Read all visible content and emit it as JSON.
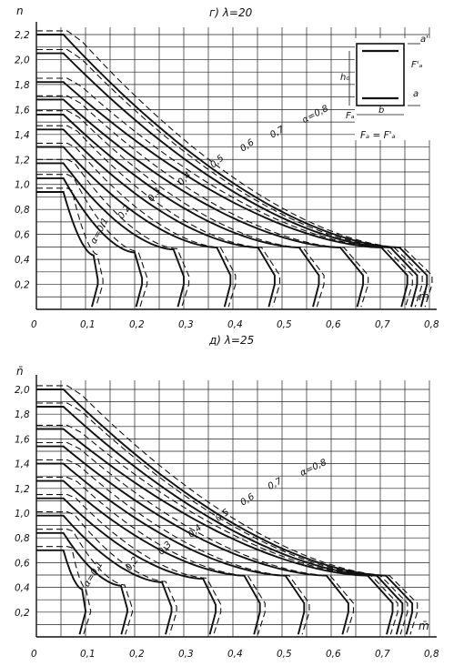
{
  "chart_data": [
    {
      "type": "line",
      "title": "г) λ=20",
      "xlabel": "m̄",
      "ylabel": "n",
      "xlim": [
        0,
        0.8
      ],
      "ylim": [
        0,
        2.2
      ],
      "grid": true,
      "x_tick_labels": [
        "0",
        "0,1",
        "0,2",
        "0,3",
        "0,4",
        "0,5",
        "0,6",
        "0,7",
        "0,8"
      ],
      "y_tick_labels": [
        "0,2",
        "0,4",
        "0,6",
        "0,8",
        "1,0",
        "1,2",
        "1,4",
        "1,6",
        "1,8",
        "2,0",
        "2,2"
      ],
      "line_styles": [
        "solid",
        "dashed"
      ],
      "series": [
        {
          "name": "α=0,1",
          "label": "α=0,1",
          "n0": 0.94,
          "xtip": 0.125
        },
        {
          "name": "0,2",
          "label": "0,2",
          "n0": 1.05,
          "xtip": 0.215
        },
        {
          "name": "0,3",
          "label": "0,3",
          "n0": 1.17,
          "xtip": 0.3
        },
        {
          "name": "0,4",
          "label": "0,4",
          "n0": 1.3,
          "xtip": 0.395
        },
        {
          "name": "0,5",
          "label": "0,5",
          "n0": 1.44,
          "xtip": 0.485
        },
        {
          "name": "0,6",
          "label": "0,6",
          "n0": 1.56,
          "xtip": 0.575
        },
        {
          "name": "0,7",
          "label": "0,7",
          "n0": 1.68,
          "xtip": 0.665
        },
        {
          "name": "α=0,8",
          "label": "α=0,8",
          "n0": 1.82,
          "xtip": 0.755
        }
      ],
      "extra_curves_n0": [
        2.05,
        2.2
      ],
      "inset": {
        "labels": [
          "a'",
          "h₀",
          "F'ₐ",
          "a",
          "Fₐ",
          "b"
        ],
        "formula": "Fₐ = F'ₐ"
      }
    },
    {
      "type": "line",
      "title": "д) λ=25",
      "xlabel": "m̄",
      "ylabel": "n̄",
      "xlim": [
        0,
        0.8
      ],
      "ylim": [
        0,
        2.0
      ],
      "grid": true,
      "x_tick_labels": [
        "0",
        "0,1",
        "0,2",
        "0,3",
        "0,4",
        "0,5",
        "0,6",
        "0,7",
        "0,8"
      ],
      "y_tick_labels": [
        "0,2",
        "0,4",
        "0,6",
        "0,8",
        "1,0",
        "1,2",
        "1,4",
        "1,6",
        "1,8",
        "2,0"
      ],
      "line_styles": [
        "solid",
        "dashed"
      ],
      "series": [
        {
          "name": "α=0,1",
          "label": "α=0,1",
          "n0": 0.7,
          "xtip": 0.1
        },
        {
          "name": "0,2",
          "label": "0,2",
          "n0": 0.84,
          "xtip": 0.185
        },
        {
          "name": "0,3",
          "label": "0,3",
          "n0": 0.98,
          "xtip": 0.275
        },
        {
          "name": "0,4",
          "label": "0,4",
          "n0": 1.12,
          "xtip": 0.365
        },
        {
          "name": "0,5",
          "label": "0,5",
          "n0": 1.26,
          "xtip": 0.455
        },
        {
          "name": "0,6",
          "label": "0,6",
          "n0": 1.4,
          "xtip": 0.545
        },
        {
          "name": "0,7",
          "label": "0,7",
          "n0": 1.54,
          "xtip": 0.635
        },
        {
          "name": "α=0,8",
          "label": "α=0,8",
          "n0": 1.68,
          "xtip": 0.725
        }
      ],
      "extra_curves_n0": [
        1.86,
        2.0
      ]
    }
  ]
}
